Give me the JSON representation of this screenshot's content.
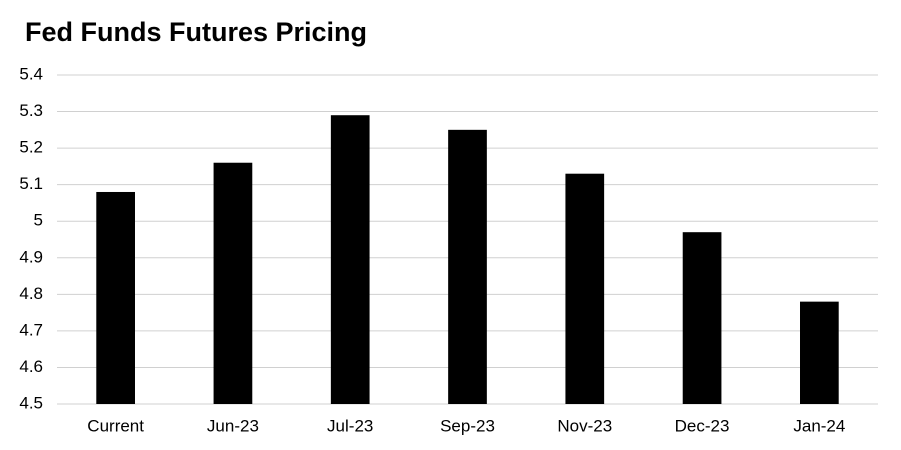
{
  "chart_data": {
    "type": "bar",
    "title": "Fed Funds Futures Pricing",
    "categories": [
      "Current",
      "Jun-23",
      "Jul-23",
      "Sep-23",
      "Nov-23",
      "Dec-23",
      "Jan-24"
    ],
    "values": [
      5.08,
      5.16,
      5.29,
      5.25,
      5.13,
      4.97,
      4.78
    ],
    "color": "#000000",
    "ylim": [
      4.5,
      5.4
    ],
    "yticks": [
      4.5,
      4.6,
      4.7,
      4.8,
      4.9,
      5,
      5.1,
      5.2,
      5.3,
      5.4
    ],
    "grid": true
  }
}
